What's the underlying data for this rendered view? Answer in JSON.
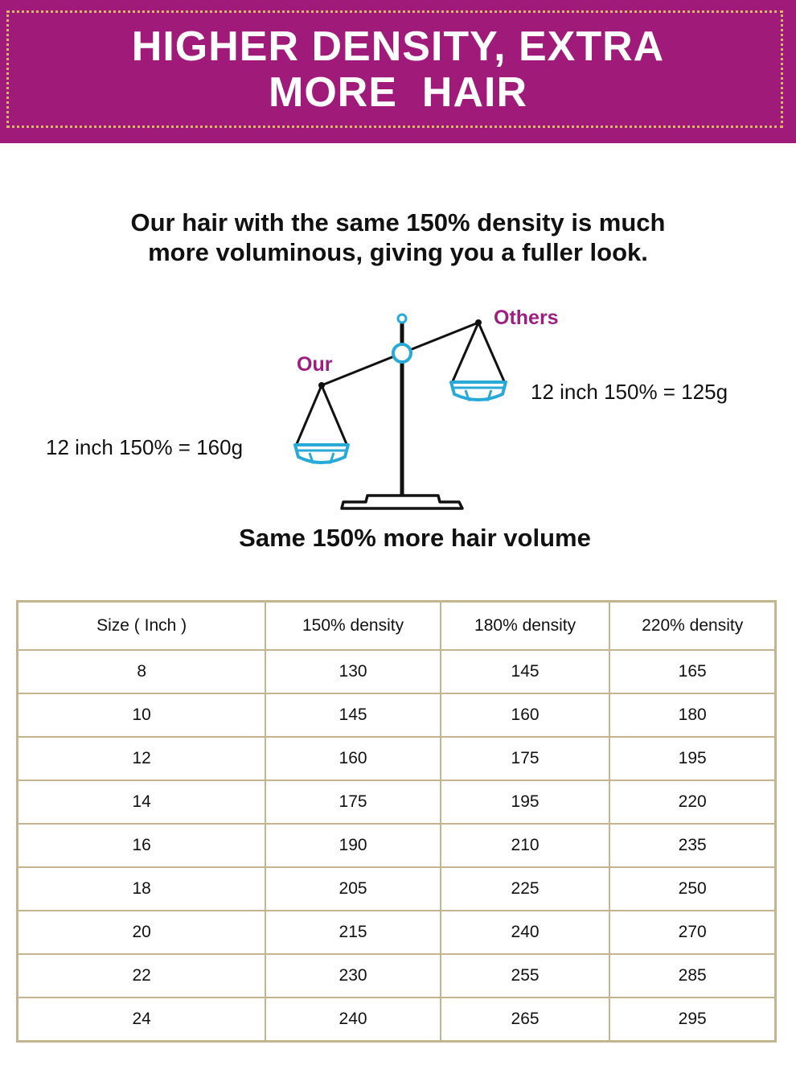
{
  "banner": {
    "title_line1": "HIGHER DENSITY, EXTRA",
    "title_line2": "MORE  HAIR"
  },
  "intro": {
    "line1": "Our hair with the same 150% density is much",
    "line2": "more voluminous, giving you a fuller look."
  },
  "scale": {
    "label_others": "Others",
    "label_our": "Our",
    "others_weight": "12 inch 150% = 125g",
    "our_weight": "12 inch 150% = 160g",
    "caption": "Same 150% more hair volume",
    "accent_color": "#9b1f7e",
    "basket_color": "#29a9d8"
  },
  "table": {
    "headers": [
      "Size ( Inch )",
      "150% density",
      "180% density",
      "220% density"
    ],
    "rows": [
      [
        "8",
        "130",
        "145",
        "165"
      ],
      [
        "10",
        "145",
        "160",
        "180"
      ],
      [
        "12",
        "160",
        "175",
        "195"
      ],
      [
        "14",
        "175",
        "195",
        "220"
      ],
      [
        "16",
        "190",
        "210",
        "235"
      ],
      [
        "18",
        "205",
        "225",
        "250"
      ],
      [
        "20",
        "215",
        "240",
        "270"
      ],
      [
        "22",
        "230",
        "255",
        "285"
      ],
      [
        "24",
        "240",
        "265",
        "295"
      ]
    ]
  }
}
